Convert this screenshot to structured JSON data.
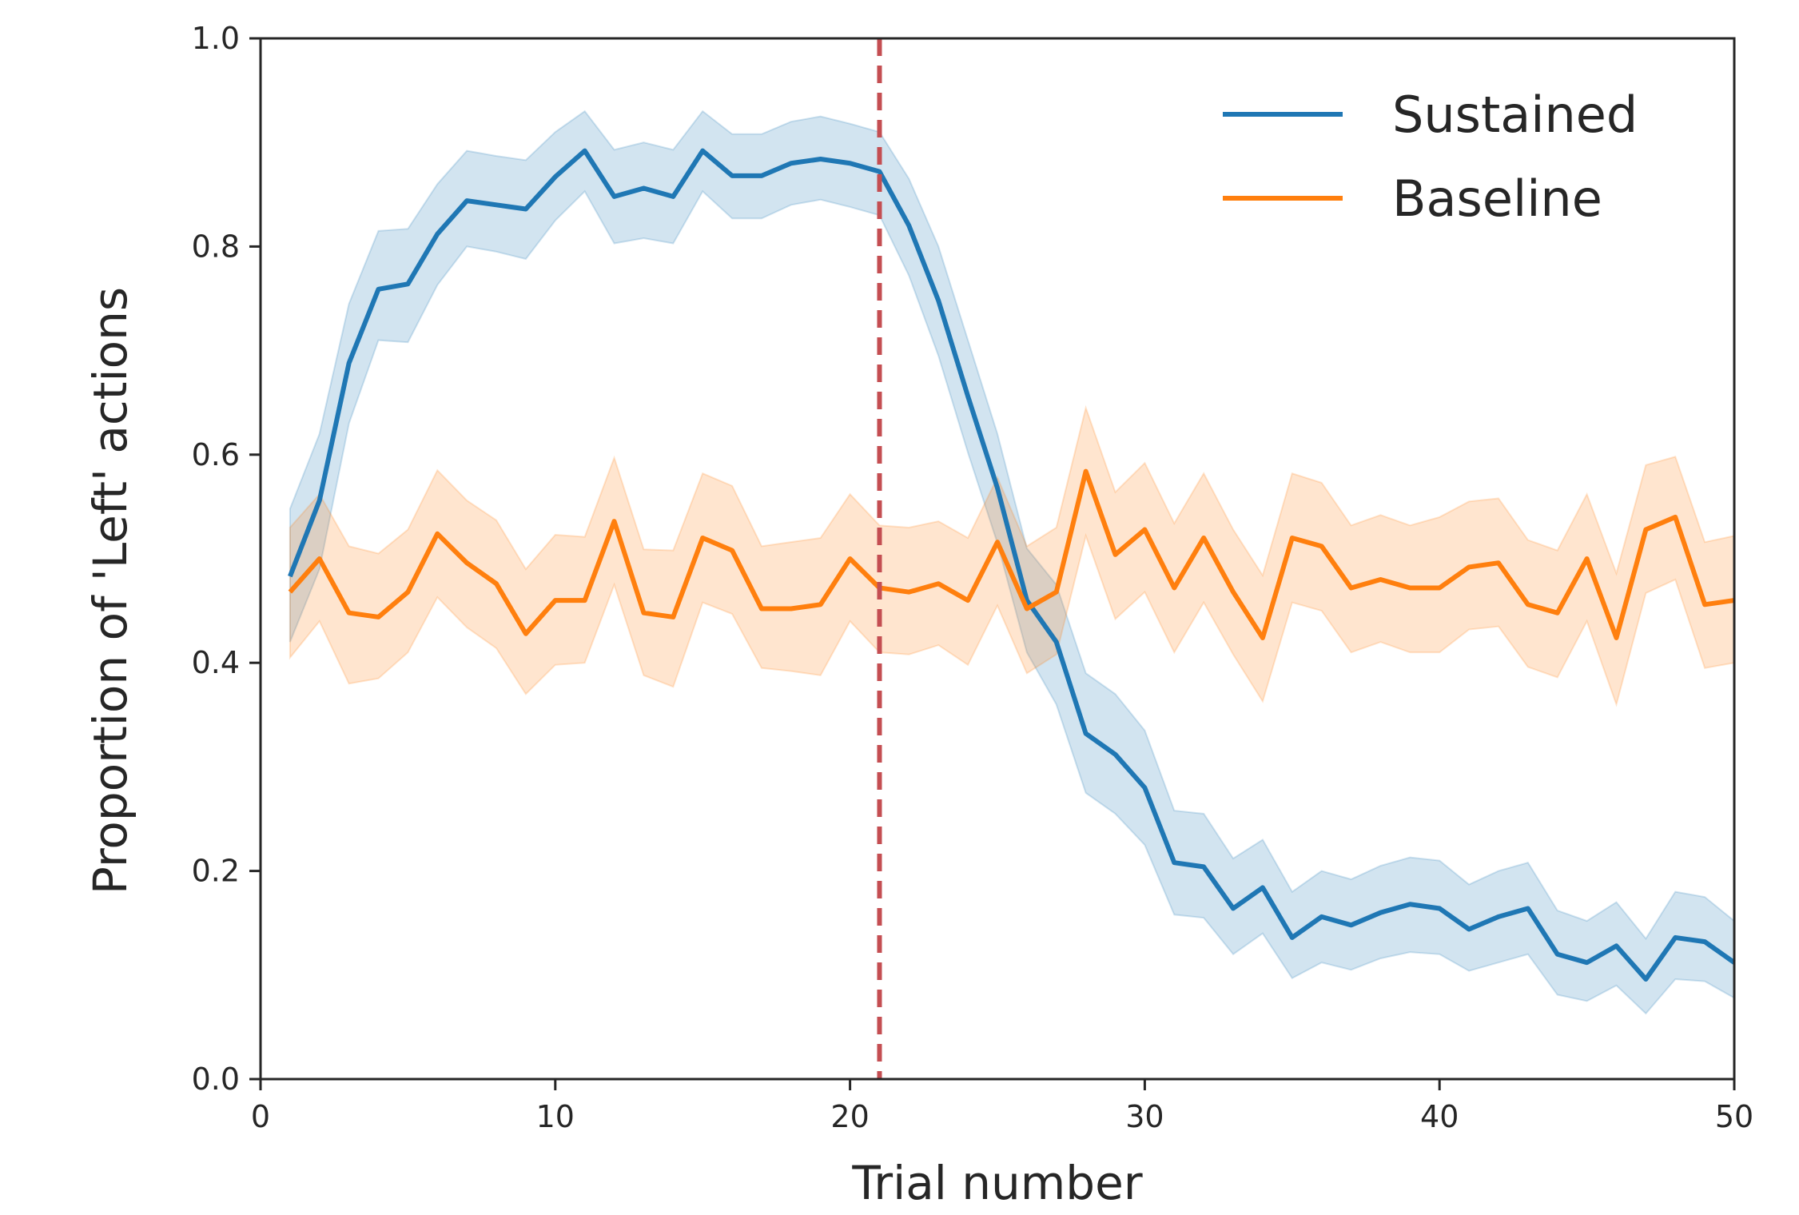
{
  "chart_data": {
    "type": "line",
    "title": "",
    "xlabel": "Trial number",
    "ylabel": "Proportion of 'Left' actions",
    "xlim": [
      0,
      50
    ],
    "ylim": [
      0,
      1.0
    ],
    "x_ticks": [
      0,
      10,
      20,
      30,
      40,
      50
    ],
    "x_tick_labels": [
      "0",
      "10",
      "20",
      "30",
      "40",
      "50"
    ],
    "y_ticks": [
      0,
      0.2,
      0.4,
      0.6,
      0.8,
      1.0
    ],
    "y_tick_labels": [
      "0.0",
      "0.2",
      "0.4",
      "0.6",
      "0.8",
      "1.0"
    ],
    "grid": false,
    "legend_position": "top-right",
    "vertical_line": {
      "x": 21,
      "style": "dashed",
      "color": "#c44e52"
    },
    "series": [
      {
        "name": "Sustained",
        "color": "#1f77b4",
        "x": [
          1,
          2,
          3,
          4,
          5,
          6,
          7,
          8,
          9,
          10,
          11,
          12,
          13,
          14,
          15,
          16,
          17,
          18,
          19,
          20,
          21,
          22,
          23,
          24,
          25,
          26,
          27,
          28,
          29,
          30,
          31,
          32,
          33,
          34,
          35,
          36,
          37,
          38,
          39,
          40,
          41,
          42,
          43,
          44,
          45,
          46,
          47,
          48,
          49,
          50
        ],
        "values": [
          0.483,
          0.556,
          0.688,
          0.759,
          0.764,
          0.812,
          0.844,
          0.84,
          0.836,
          0.867,
          0.892,
          0.848,
          0.856,
          0.848,
          0.892,
          0.868,
          0.868,
          0.88,
          0.884,
          0.88,
          0.872,
          0.82,
          0.748,
          0.656,
          0.568,
          0.46,
          0.42,
          0.332,
          0.312,
          0.28,
          0.208,
          0.204,
          0.164,
          0.184,
          0.136,
          0.156,
          0.148,
          0.16,
          0.168,
          0.164,
          0.144,
          0.156,
          0.164,
          0.12,
          0.112,
          0.128,
          0.096,
          0.136,
          0.132,
          0.112
        ],
        "lower": [
          0.42,
          0.49,
          0.63,
          0.71,
          0.708,
          0.763,
          0.8,
          0.795,
          0.788,
          0.825,
          0.853,
          0.803,
          0.808,
          0.803,
          0.853,
          0.827,
          0.827,
          0.84,
          0.845,
          0.838,
          0.83,
          0.772,
          0.695,
          0.602,
          0.515,
          0.41,
          0.36,
          0.275,
          0.255,
          0.225,
          0.158,
          0.155,
          0.12,
          0.14,
          0.097,
          0.112,
          0.105,
          0.116,
          0.122,
          0.12,
          0.104,
          0.112,
          0.12,
          0.081,
          0.075,
          0.09,
          0.063,
          0.096,
          0.094,
          0.078
        ],
        "upper": [
          0.548,
          0.62,
          0.745,
          0.815,
          0.817,
          0.86,
          0.892,
          0.887,
          0.883,
          0.91,
          0.93,
          0.893,
          0.9,
          0.893,
          0.93,
          0.908,
          0.908,
          0.92,
          0.925,
          0.918,
          0.91,
          0.865,
          0.8,
          0.71,
          0.62,
          0.51,
          0.475,
          0.39,
          0.37,
          0.335,
          0.258,
          0.255,
          0.212,
          0.23,
          0.18,
          0.2,
          0.192,
          0.205,
          0.213,
          0.21,
          0.187,
          0.2,
          0.208,
          0.162,
          0.152,
          0.17,
          0.135,
          0.18,
          0.175,
          0.152
        ]
      },
      {
        "name": "Baseline",
        "color": "#ff7f0e",
        "x": [
          1,
          2,
          3,
          4,
          5,
          6,
          7,
          8,
          9,
          10,
          11,
          12,
          13,
          14,
          15,
          16,
          17,
          18,
          19,
          20,
          21,
          22,
          23,
          24,
          25,
          26,
          27,
          28,
          29,
          30,
          31,
          32,
          33,
          34,
          35,
          36,
          37,
          38,
          39,
          40,
          41,
          42,
          43,
          44,
          45,
          46,
          47,
          48,
          49,
          50
        ],
        "values": [
          0.468,
          0.5,
          0.448,
          0.444,
          0.468,
          0.524,
          0.496,
          0.476,
          0.428,
          0.46,
          0.46,
          0.536,
          0.448,
          0.444,
          0.52,
          0.508,
          0.452,
          0.452,
          0.456,
          0.5,
          0.472,
          0.468,
          0.476,
          0.46,
          0.516,
          0.452,
          0.468,
          0.584,
          0.504,
          0.528,
          0.472,
          0.52,
          0.468,
          0.424,
          0.52,
          0.512,
          0.472,
          0.48,
          0.472,
          0.472,
          0.492,
          0.496,
          0.456,
          0.448,
          0.5,
          0.424,
          0.528,
          0.54,
          0.456,
          0.46
        ],
        "lower": [
          0.405,
          0.44,
          0.38,
          0.385,
          0.41,
          0.463,
          0.434,
          0.414,
          0.37,
          0.398,
          0.4,
          0.475,
          0.388,
          0.377,
          0.458,
          0.447,
          0.395,
          0.392,
          0.388,
          0.44,
          0.41,
          0.408,
          0.417,
          0.398,
          0.455,
          0.39,
          0.408,
          0.522,
          0.442,
          0.468,
          0.41,
          0.458,
          0.408,
          0.363,
          0.458,
          0.45,
          0.41,
          0.42,
          0.41,
          0.41,
          0.432,
          0.435,
          0.396,
          0.386,
          0.44,
          0.36,
          0.467,
          0.48,
          0.395,
          0.4
        ],
        "upper": [
          0.53,
          0.562,
          0.512,
          0.505,
          0.528,
          0.585,
          0.556,
          0.537,
          0.49,
          0.523,
          0.521,
          0.597,
          0.509,
          0.508,
          0.582,
          0.57,
          0.512,
          0.516,
          0.52,
          0.562,
          0.532,
          0.53,
          0.536,
          0.52,
          0.578,
          0.512,
          0.53,
          0.645,
          0.564,
          0.592,
          0.534,
          0.582,
          0.528,
          0.484,
          0.582,
          0.573,
          0.532,
          0.542,
          0.532,
          0.54,
          0.555,
          0.558,
          0.518,
          0.508,
          0.562,
          0.486,
          0.59,
          0.598,
          0.516,
          0.522
        ]
      }
    ]
  }
}
